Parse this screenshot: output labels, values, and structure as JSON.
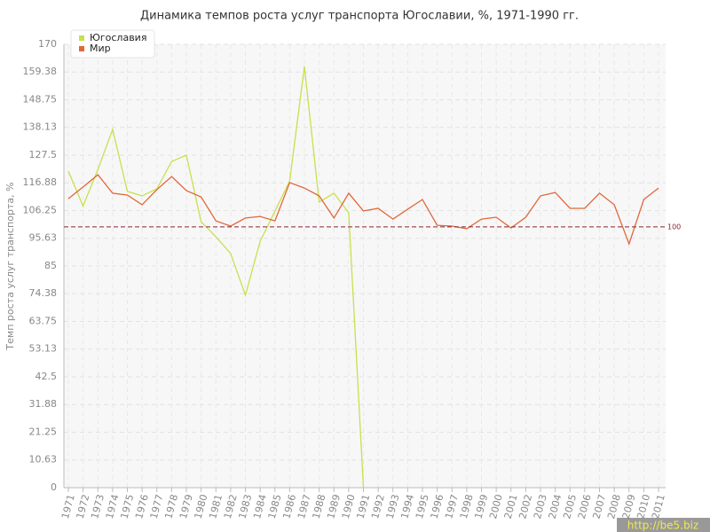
{
  "chart_data": {
    "type": "line",
    "title": "Динамика темпов роста услуг транспорта Югославии, %, 1971-1990 гг.",
    "y_label": "Темп роста услуг транспорта, %",
    "categories": [
      "1971",
      "1972",
      "1973",
      "1974",
      "1975",
      "1976",
      "1977",
      "1978",
      "1979",
      "1980",
      "1981",
      "1982",
      "1983",
      "1984",
      "1985",
      "1986",
      "1987",
      "1988",
      "1989",
      "1990",
      "1991",
      "1992",
      "1993",
      "1994",
      "1995",
      "1996",
      "1997",
      "1998",
      "1999",
      "2000",
      "2001",
      "2002",
      "2003",
      "2004",
      "2005",
      "2006",
      "2007",
      "2008",
      "2009",
      "2010",
      "2011"
    ],
    "series": [
      {
        "name": "Югославия",
        "color": "#c8e04c",
        "values": [
          121.4,
          108,
          122,
          137.4,
          113.6,
          111.9,
          114.6,
          125.1,
          127.5,
          102,
          96.2,
          89.8,
          73.8,
          94.5,
          106,
          117.6,
          161.5,
          109.5,
          112.9,
          105.4,
          0,
          null,
          null,
          null,
          null,
          null,
          null,
          null,
          null,
          null,
          null,
          null,
          null,
          null,
          null,
          null,
          null,
          null,
          null,
          null,
          null
        ]
      },
      {
        "name": "Мир",
        "color": "#e0683a",
        "values": [
          110.8,
          115.3,
          120,
          112.9,
          112.2,
          108.5,
          114.3,
          119.3,
          113.9,
          111.5,
          102.3,
          100.3,
          103.4,
          104,
          102.3,
          117,
          114.9,
          111.9,
          103.4,
          112.9,
          106.1,
          107.1,
          103,
          106.8,
          110.5,
          100.6,
          100.3,
          99.3,
          103,
          103.7,
          99.6,
          103.7,
          111.9,
          113.2,
          107.1,
          107.1,
          112.9,
          108.5,
          93.5,
          110.5,
          114.9
        ]
      }
    ],
    "ylim": [
      0,
      170
    ],
    "yticks": [
      0,
      10.63,
      21.25,
      31.88,
      42.5,
      53.13,
      63.75,
      74.38,
      85,
      95.63,
      106.25,
      116.88,
      127.5,
      138.13,
      148.75,
      159.38,
      170
    ],
    "reference_line": {
      "value": 100,
      "label": "100",
      "color": "#8b2233"
    },
    "grid": true,
    "legend": "top-left",
    "watermark": "http://be5.biz"
  }
}
